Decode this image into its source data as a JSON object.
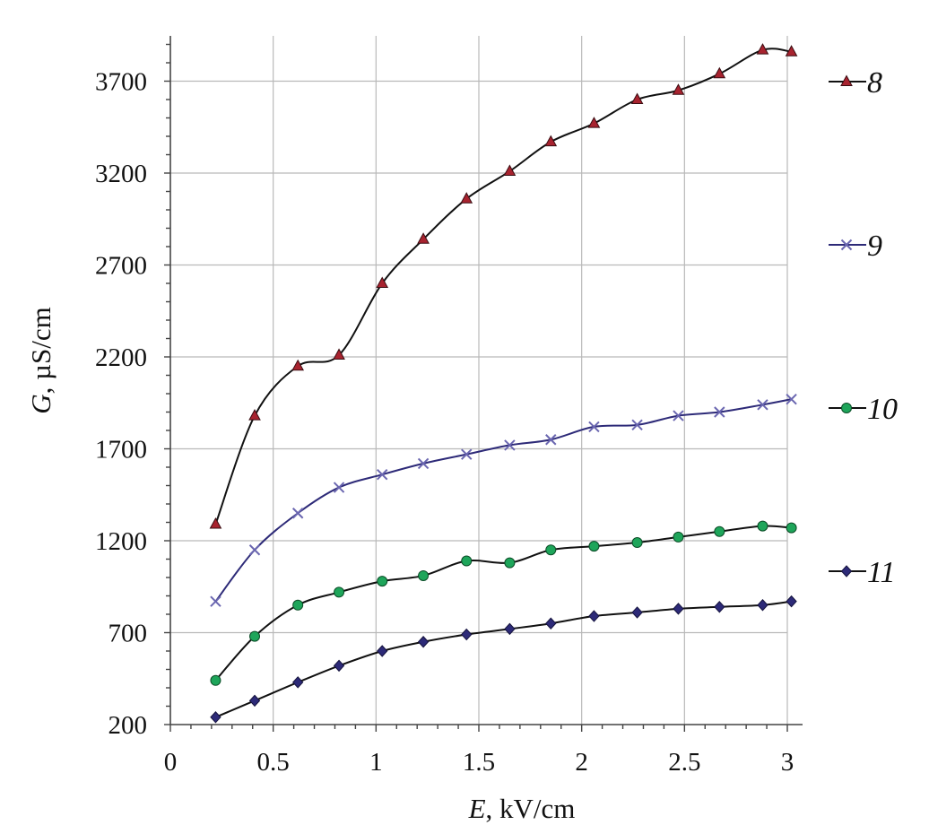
{
  "chart_data": {
    "type": "line",
    "xlabel": {
      "var": "E",
      "unit": ", kV/cm"
    },
    "ylabel": {
      "var": "G",
      "unit": ", µS/cm"
    },
    "xlim": [
      0,
      3
    ],
    "ylim": [
      200,
      4000
    ],
    "xticks": [
      0,
      0.5,
      1,
      1.5,
      2,
      2.5,
      3
    ],
    "xtick_labels": [
      "0",
      "0.5",
      "1",
      "1.5",
      "2",
      "2.5",
      "3"
    ],
    "yticks": [
      200,
      700,
      1200,
      1700,
      2200,
      2700,
      3200,
      3700
    ],
    "ytick_labels": [
      "200",
      "700",
      "1200",
      "1700",
      "2200",
      "2700",
      "3200",
      "3700"
    ],
    "grid": true,
    "legend_position": "right",
    "series": [
      {
        "name": "8",
        "marker": "triangle",
        "line_color": "#111111",
        "marker_color": "#a8232f",
        "x": [
          0.22,
          0.41,
          0.62,
          0.82,
          1.03,
          1.23,
          1.44,
          1.65,
          1.85,
          2.06,
          2.27,
          2.47,
          2.67,
          2.88,
          3.02
        ],
        "y": [
          1290,
          1880,
          2150,
          2210,
          2600,
          2840,
          3060,
          3210,
          3370,
          3470,
          3600,
          3650,
          3740,
          3870,
          3860
        ]
      },
      {
        "name": "9",
        "marker": "x",
        "line_color": "#2d2a78",
        "marker_color": "#6a66b0",
        "x": [
          0.22,
          0.41,
          0.62,
          0.82,
          1.03,
          1.23,
          1.44,
          1.65,
          1.85,
          2.06,
          2.27,
          2.47,
          2.67,
          2.88,
          3.02
        ],
        "y": [
          870,
          1150,
          1350,
          1490,
          1560,
          1620,
          1670,
          1720,
          1750,
          1820,
          1830,
          1880,
          1900,
          1940,
          1970
        ]
      },
      {
        "name": "10",
        "marker": "circle",
        "line_color": "#111111",
        "marker_color": "#1ea55a",
        "x": [
          0.22,
          0.41,
          0.62,
          0.82,
          1.03,
          1.23,
          1.44,
          1.65,
          1.85,
          2.06,
          2.27,
          2.47,
          2.67,
          2.88,
          3.02
        ],
        "y": [
          440,
          680,
          850,
          920,
          980,
          1010,
          1090,
          1080,
          1150,
          1170,
          1190,
          1220,
          1250,
          1280,
          1270
        ]
      },
      {
        "name": "11",
        "marker": "diamond",
        "line_color": "#111111",
        "marker_color": "#2d2a78",
        "x": [
          0.22,
          0.41,
          0.62,
          0.82,
          1.03,
          1.23,
          1.44,
          1.65,
          1.85,
          2.06,
          2.27,
          2.47,
          2.67,
          2.88,
          3.02
        ],
        "y": [
          240,
          330,
          430,
          520,
          600,
          650,
          690,
          720,
          750,
          790,
          810,
          830,
          840,
          850,
          870
        ]
      }
    ]
  }
}
